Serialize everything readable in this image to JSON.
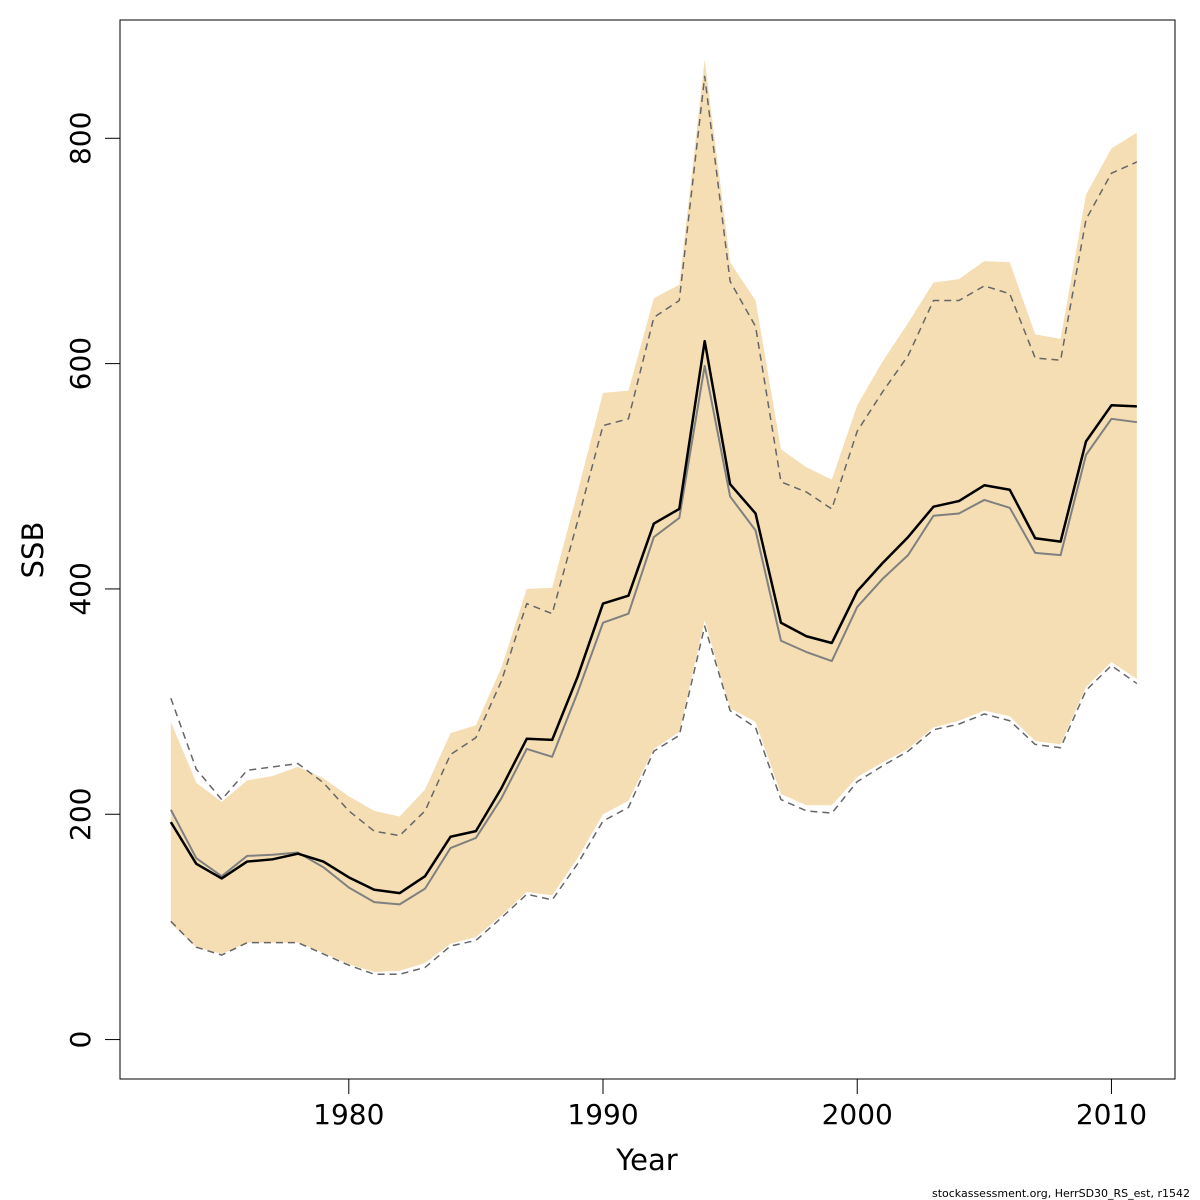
{
  "chart_data": {
    "type": "line",
    "xlabel": "Year",
    "ylabel": "SSB",
    "xlim": [
      1971,
      2012.5
    ],
    "ylim": [
      -35,
      905
    ],
    "x_ticks": [
      1980,
      1990,
      2000,
      2010
    ],
    "y_ticks": [
      0,
      200,
      400,
      600,
      800
    ],
    "grid": false,
    "credit": "stockassessment.org, HerrSD30_RS_est, r1542",
    "colors": {
      "band": "#f5deb3",
      "estimate": "#000000",
      "previous": "#808080",
      "previous_ci": "#666666"
    },
    "x": [
      1973,
      1974,
      1975,
      1976,
      1977,
      1978,
      1979,
      1980,
      1981,
      1982,
      1983,
      1984,
      1985,
      1986,
      1987,
      1988,
      1989,
      1990,
      1991,
      1992,
      1993,
      1994,
      1995,
      1996,
      1997,
      1998,
      1999,
      2000,
      2001,
      2002,
      2003,
      2004,
      2005,
      2006,
      2007,
      2008,
      2009,
      2010,
      2011
    ],
    "series": [
      {
        "role": "band_upper",
        "values": [
          282,
          228,
          211,
          230,
          234,
          242,
          232,
          216,
          203,
          198,
          222,
          272,
          279,
          330,
          400,
          401,
          486,
          574,
          576,
          658,
          670,
          870,
          690,
          656,
          524,
          508,
          497,
          563,
          602,
          636,
          672,
          675,
          691,
          690,
          626,
          622,
          750,
          791,
          805
        ]
      },
      {
        "role": "band_lower",
        "values": [
          103,
          82,
          76,
          86,
          86,
          86,
          77,
          67,
          60,
          61,
          68,
          85,
          91,
          110,
          131,
          128,
          161,
          200,
          212,
          258,
          273,
          372,
          294,
          282,
          218,
          208,
          208,
          233,
          246,
          258,
          277,
          283,
          292,
          287,
          265,
          262,
          313,
          335,
          320
        ]
      },
      {
        "role": "estimate",
        "values": [
          193,
          156,
          143,
          158,
          160,
          165,
          158,
          144,
          133,
          130,
          145,
          180,
          185,
          223,
          267,
          266,
          322,
          387,
          394,
          458,
          471,
          620,
          493,
          467,
          370,
          358,
          352,
          398,
          423,
          446,
          473,
          478,
          492,
          488,
          445,
          442,
          531,
          563,
          562
        ]
      },
      {
        "role": "previous_estimate",
        "values": [
          204,
          161,
          145,
          163,
          164,
          166,
          153,
          135,
          122,
          120,
          134,
          170,
          179,
          214,
          258,
          251,
          308,
          370,
          378,
          446,
          463,
          598,
          482,
          452,
          354,
          344,
          336,
          384,
          409,
          430,
          465,
          467,
          479,
          472,
          432,
          430,
          519,
          551,
          548
        ]
      },
      {
        "role": "previous_upper",
        "values": [
          303,
          240,
          213,
          239,
          242,
          245,
          228,
          203,
          185,
          181,
          203,
          253,
          268,
          318,
          387,
          378,
          460,
          545,
          551,
          641,
          656,
          855,
          673,
          633,
          495,
          486,
          471,
          540,
          575,
          607,
          656,
          656,
          669,
          662,
          605,
          603,
          728,
          769,
          779
        ]
      },
      {
        "role": "previous_lower",
        "values": [
          105,
          82,
          75,
          86,
          86,
          86,
          76,
          66,
          58,
          58,
          64,
          83,
          88,
          108,
          129,
          124,
          156,
          194,
          206,
          256,
          270,
          367,
          292,
          277,
          213,
          203,
          201,
          229,
          243,
          256,
          275,
          280,
          289,
          283,
          262,
          259,
          310,
          332,
          316
        ]
      }
    ]
  }
}
